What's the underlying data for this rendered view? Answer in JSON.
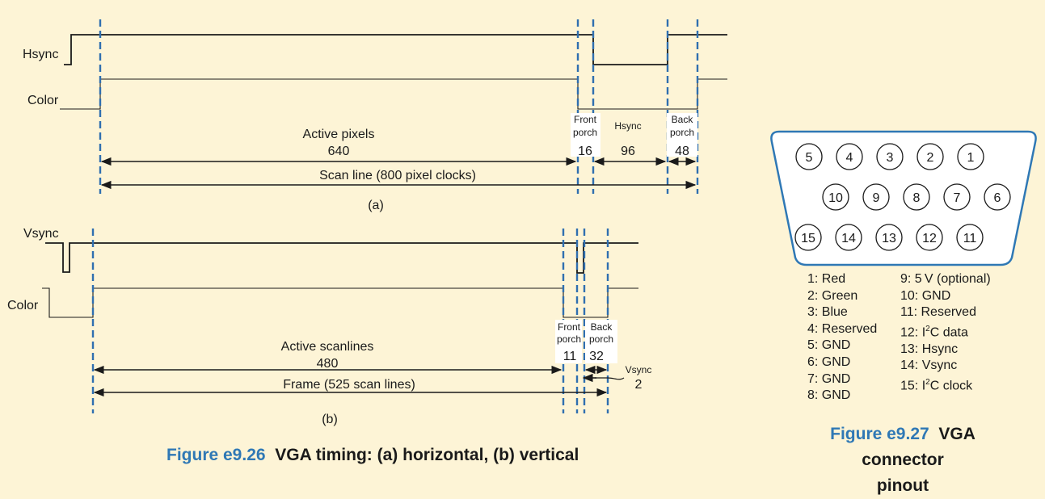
{
  "horizontal": {
    "hsync_label": "Hsync",
    "color_label": "Color",
    "active_label": "Active pixels",
    "active_value": "640",
    "front_label_1": "Front",
    "front_label_2": "porch",
    "front_value": "16",
    "sync_label": "Hsync",
    "sync_value": "96",
    "back_label_1": "Back",
    "back_label_2": "porch",
    "back_value": "48",
    "scan_label": "Scan line (800 pixel clocks)",
    "sub_label": "(a)"
  },
  "vertical": {
    "vsync_label": "Vsync",
    "color_label": "Color",
    "active_label": "Active scanlines",
    "active_value": "480",
    "front_label_1": "Front",
    "front_label_2": "porch",
    "front_value": "11",
    "back_label_1": "Back",
    "back_label_2": "porch",
    "back_value": "32",
    "sync_label": "Vsync",
    "sync_value": "2",
    "frame_label": "Frame (525 scan lines)",
    "sub_label": "(b)"
  },
  "caption_timing": {
    "number": "Figure e9.26",
    "text": "VGA timing: (a) horizontal, (b) vertical"
  },
  "connector": {
    "row1": [
      "5",
      "4",
      "3",
      "2",
      "1"
    ],
    "row2": [
      "10",
      "9",
      "8",
      "7",
      "6"
    ],
    "row3": [
      "15",
      "14",
      "13",
      "12",
      "11"
    ],
    "pins_left": [
      "1: Red",
      "2: Green",
      "3: Blue",
      "4: Reserved",
      "5: GND",
      "6: GND",
      "7: GND",
      "8: GND"
    ],
    "pins_right": [
      {
        "pre": "9: 5 V (optional)"
      },
      {
        "pre": "10: GND"
      },
      {
        "pre": "11: Reserved"
      },
      {
        "pre": "12: I",
        "sup": "2",
        "post": "C data"
      },
      {
        "pre": "13: Hsync"
      },
      {
        "pre": "14: Vsync"
      },
      {
        "pre": "15: I",
        "sup": "2",
        "post": "C clock"
      }
    ]
  },
  "caption_connector": {
    "number": "Figure e9.27",
    "text_1": "VGA connector",
    "text_2": "pinout"
  },
  "colors": {
    "background": "#fdf4d6",
    "dash_blue": "#2f6fb0",
    "caption_blue": "#2f78b5",
    "connector_fill": "#ffffff",
    "connector_stroke": "#2f78b5"
  }
}
